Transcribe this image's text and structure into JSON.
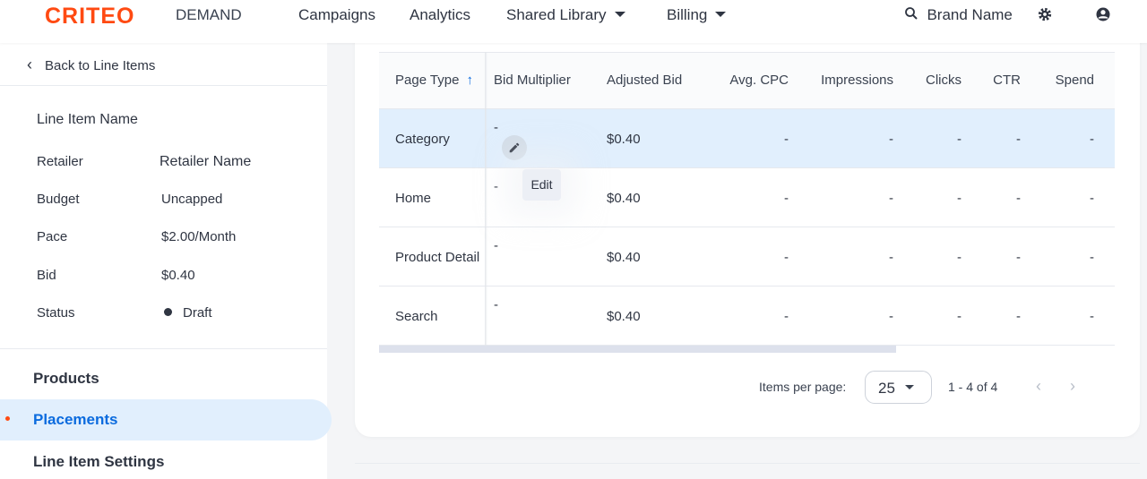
{
  "header": {
    "logo": "CRITEO",
    "product": "DEMAND",
    "nav": [
      "Campaigns",
      "Analytics",
      "Shared Library",
      "Billing"
    ],
    "brand": "Brand Name"
  },
  "sidebar": {
    "back": "Back to Line Items",
    "title": "Line Item Name",
    "details": [
      {
        "label": "Retailer",
        "value": "Retailer Name"
      },
      {
        "label": "Budget",
        "value": "Uncapped"
      },
      {
        "label": "Pace",
        "value": "$2.00/Month"
      },
      {
        "label": "Bid",
        "value": "$0.40"
      },
      {
        "label": "Status",
        "value": "Draft"
      }
    ],
    "sections": [
      "Products",
      "Placements",
      "Line Item Settings"
    ],
    "active": "Placements"
  },
  "table": {
    "columns": [
      "Page Type",
      "Bid Multiplier",
      "Adjusted Bid",
      "Avg. CPC",
      "Impressions",
      "Clicks",
      "CTR",
      "Spend"
    ],
    "rows": [
      {
        "page_type": "Category",
        "bid_multiplier": "-",
        "adjusted_bid": "$0.40",
        "avg_cpc": "-",
        "impressions": "-",
        "clicks": "-",
        "ctr": "-",
        "spend": "-"
      },
      {
        "page_type": "Home",
        "bid_multiplier": "-",
        "adjusted_bid": "$0.40",
        "avg_cpc": "-",
        "impressions": "-",
        "clicks": "-",
        "ctr": "-",
        "spend": "-"
      },
      {
        "page_type": "Product Detail",
        "bid_multiplier": "-",
        "adjusted_bid": "$0.40",
        "avg_cpc": "-",
        "impressions": "-",
        "clicks": "-",
        "ctr": "-",
        "spend": "-"
      },
      {
        "page_type": "Search",
        "bid_multiplier": "-",
        "adjusted_bid": "$0.40",
        "avg_cpc": "-",
        "impressions": "-",
        "clicks": "-",
        "ctr": "-",
        "spend": "-"
      }
    ],
    "tooltip": "Edit"
  },
  "pagination": {
    "label": "Items per page:",
    "per_page": "25",
    "range": "1 - 4 of 4"
  },
  "colors": {
    "brand": "#ff4a12",
    "accent": "#0b6bde",
    "selected_row": "#e1effd"
  }
}
